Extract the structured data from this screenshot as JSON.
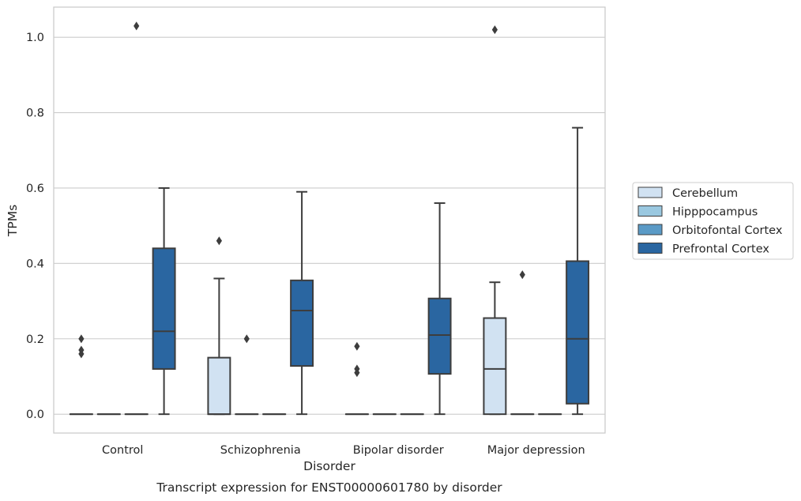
{
  "chart_data": {
    "type": "box",
    "title": "Transcript expression for ENST00000601780 by disorder",
    "xlabel": "Disorder",
    "ylabel": "TPMs",
    "ylim": [
      -0.05,
      1.08
    ],
    "yticks": [
      "0.0",
      "0.2",
      "0.4",
      "0.6",
      "0.8",
      "1.0"
    ],
    "grid": true,
    "legend_position": "right",
    "categories": [
      "Control",
      "Schizophrenia",
      "Bipolar disorder",
      "Major depression"
    ],
    "series": [
      {
        "name": "Cerebellum",
        "color": "#d1e2f2",
        "boxes": [
          {
            "whislo": 0,
            "q1": 0,
            "med": 0,
            "q3": 0,
            "whishi": 0,
            "fliers": [
              0.16,
              0.17,
              0.2
            ]
          },
          {
            "whislo": 0,
            "q1": 0,
            "med": 0,
            "q3": 0.15,
            "whishi": 0.36,
            "fliers": [
              0.46
            ]
          },
          {
            "whislo": 0,
            "q1": 0,
            "med": 0,
            "q3": 0,
            "whishi": 0,
            "fliers": [
              0.11,
              0.12,
              0.18
            ]
          },
          {
            "whislo": 0,
            "q1": 0,
            "med": 0.12,
            "q3": 0.255,
            "whishi": 0.35,
            "fliers": [
              1.02
            ]
          }
        ]
      },
      {
        "name": "Hipppocampus",
        "color": "#9ac8e0",
        "boxes": [
          {
            "whislo": 0,
            "q1": 0,
            "med": 0,
            "q3": 0,
            "whishi": 0,
            "fliers": []
          },
          {
            "whislo": 0,
            "q1": 0,
            "med": 0,
            "q3": 0,
            "whishi": 0,
            "fliers": [
              0.2
            ]
          },
          {
            "whislo": 0,
            "q1": 0,
            "med": 0,
            "q3": 0,
            "whishi": 0,
            "fliers": []
          },
          {
            "whislo": 0,
            "q1": 0,
            "med": 0,
            "q3": 0,
            "whishi": 0,
            "fliers": [
              0.37
            ]
          }
        ]
      },
      {
        "name": "Orbitofontal Cortex",
        "color": "#5a9ac6",
        "boxes": [
          {
            "whislo": 0,
            "q1": 0,
            "med": 0,
            "q3": 0,
            "whishi": 0,
            "fliers": [
              1.03
            ]
          },
          {
            "whislo": 0,
            "q1": 0,
            "med": 0,
            "q3": 0,
            "whishi": 0,
            "fliers": []
          },
          {
            "whislo": 0,
            "q1": 0,
            "med": 0,
            "q3": 0,
            "whishi": 0,
            "fliers": []
          },
          {
            "whislo": 0,
            "q1": 0,
            "med": 0,
            "q3": 0,
            "whishi": 0,
            "fliers": []
          }
        ]
      },
      {
        "name": "Prefrontal Cortex",
        "color": "#2a66a1",
        "boxes": [
          {
            "whislo": 0,
            "q1": 0.12,
            "med": 0.22,
            "q3": 0.44,
            "whishi": 0.6,
            "fliers": []
          },
          {
            "whislo": 0,
            "q1": 0.128,
            "med": 0.275,
            "q3": 0.355,
            "whishi": 0.59,
            "fliers": []
          },
          {
            "whislo": 0,
            "q1": 0.107,
            "med": 0.21,
            "q3": 0.307,
            "whishi": 0.56,
            "fliers": []
          },
          {
            "whislo": 0,
            "q1": 0.028,
            "med": 0.2,
            "q3": 0.406,
            "whishi": 0.76,
            "fliers": []
          }
        ]
      }
    ]
  }
}
